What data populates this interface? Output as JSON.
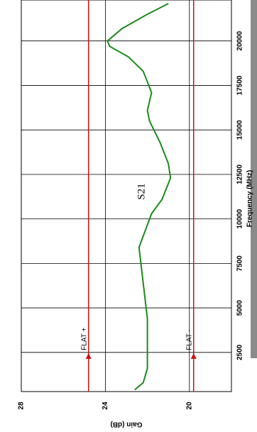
{
  "chart_data": {
    "type": "line",
    "title": "S21",
    "x_label": "Frequency (MHz)",
    "y_label": "Gain (dB)",
    "x": [
      400,
      800,
      1600,
      2400,
      4400,
      6400,
      8400,
      10300,
      11100,
      12300,
      13100,
      14300,
      15500,
      16100,
      17100,
      18300,
      19100,
      19700,
      20000,
      20700,
      21500,
      22100
    ],
    "series": [
      {
        "color": "#1a8c1a",
        "values": [
          22.6,
          22.2,
          22.0,
          22.0,
          22.0,
          22.2,
          22.4,
          21.8,
          21.3,
          20.9,
          21.0,
          21.4,
          21.9,
          22.0,
          21.8,
          22.2,
          22.9,
          23.8,
          23.9,
          23.2,
          22.0,
          21.0
        ]
      }
    ],
    "xlim": [
      300,
      22300
    ],
    "xticks": [
      2500,
      5000,
      7500,
      10000,
      12500,
      15000,
      17500,
      20000
    ],
    "ylim": [
      18,
      28
    ],
    "yticks": [
      20,
      24,
      28
    ],
    "grid": true,
    "limit_lines": [
      {
        "label": "FLAT +",
        "value": 24.8,
        "marker_x": 2300,
        "color": "#d01010"
      },
      {
        "label": "FLAT -",
        "value": 19.8,
        "marker_x": 2300,
        "color": "#d01010"
      }
    ]
  }
}
